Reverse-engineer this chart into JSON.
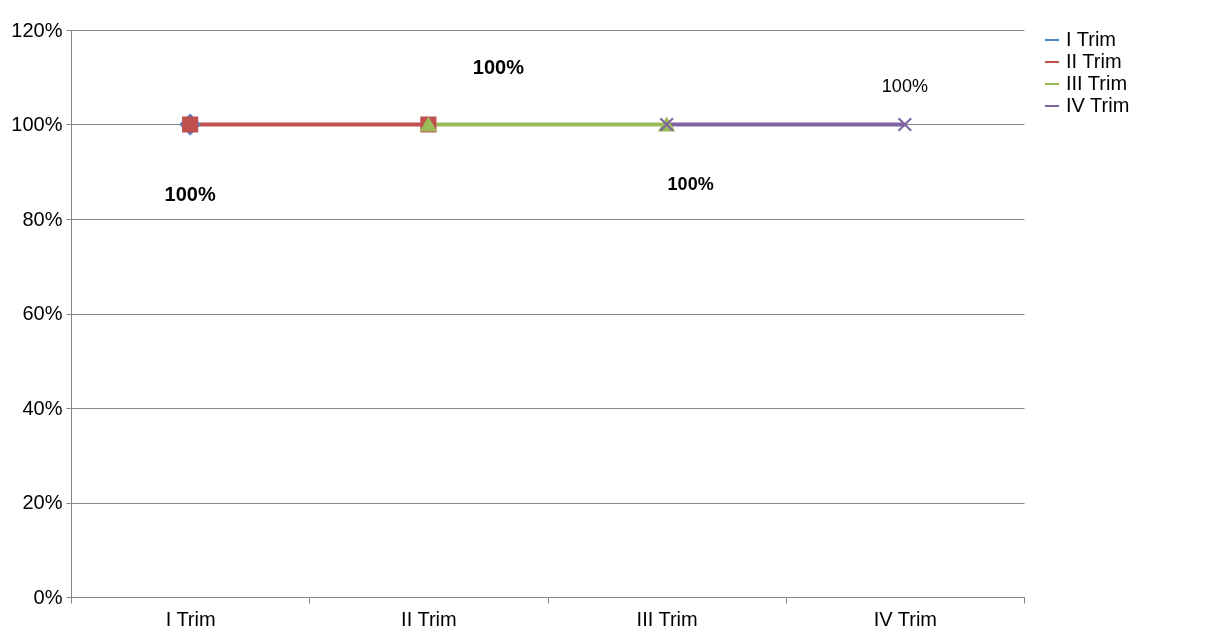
{
  "chart_data": {
    "type": "line",
    "categories": [
      "I  Trim",
      "II Trim",
      "III Trim",
      "IV Trim"
    ],
    "series": [
      {
        "name": "I  Trim",
        "color": "#4f81bd",
        "marker": "diamond",
        "values": [
          100,
          null,
          null,
          null
        ],
        "value_labels": [
          "100%",
          null,
          null,
          null
        ]
      },
      {
        "name": "II Trim",
        "color": "#c0504d",
        "marker": "square",
        "values": [
          100,
          100,
          null,
          null
        ],
        "value_labels": [
          null,
          "100%",
          null,
          null
        ]
      },
      {
        "name": "III Trim",
        "color": "#9bbb59",
        "marker": "triangle",
        "values": [
          null,
          100,
          100,
          null
        ],
        "value_labels": [
          null,
          null,
          "100%",
          null
        ]
      },
      {
        "name": "IV Trim",
        "color": "#8064a2",
        "marker": "cross",
        "values": [
          null,
          null,
          100,
          100
        ],
        "value_labels": [
          null,
          null,
          null,
          "100%"
        ]
      }
    ],
    "ylim": [
      0,
      120
    ],
    "yticks": [
      {
        "value": 0,
        "label": "0%"
      },
      {
        "value": 20,
        "label": "20%"
      },
      {
        "value": 40,
        "label": "40%"
      },
      {
        "value": 60,
        "label": "60%"
      },
      {
        "value": 80,
        "label": "80%"
      },
      {
        "value": 100,
        "label": "100%"
      },
      {
        "value": 120,
        "label": "120%"
      }
    ],
    "grid": "y",
    "legend": "right"
  }
}
